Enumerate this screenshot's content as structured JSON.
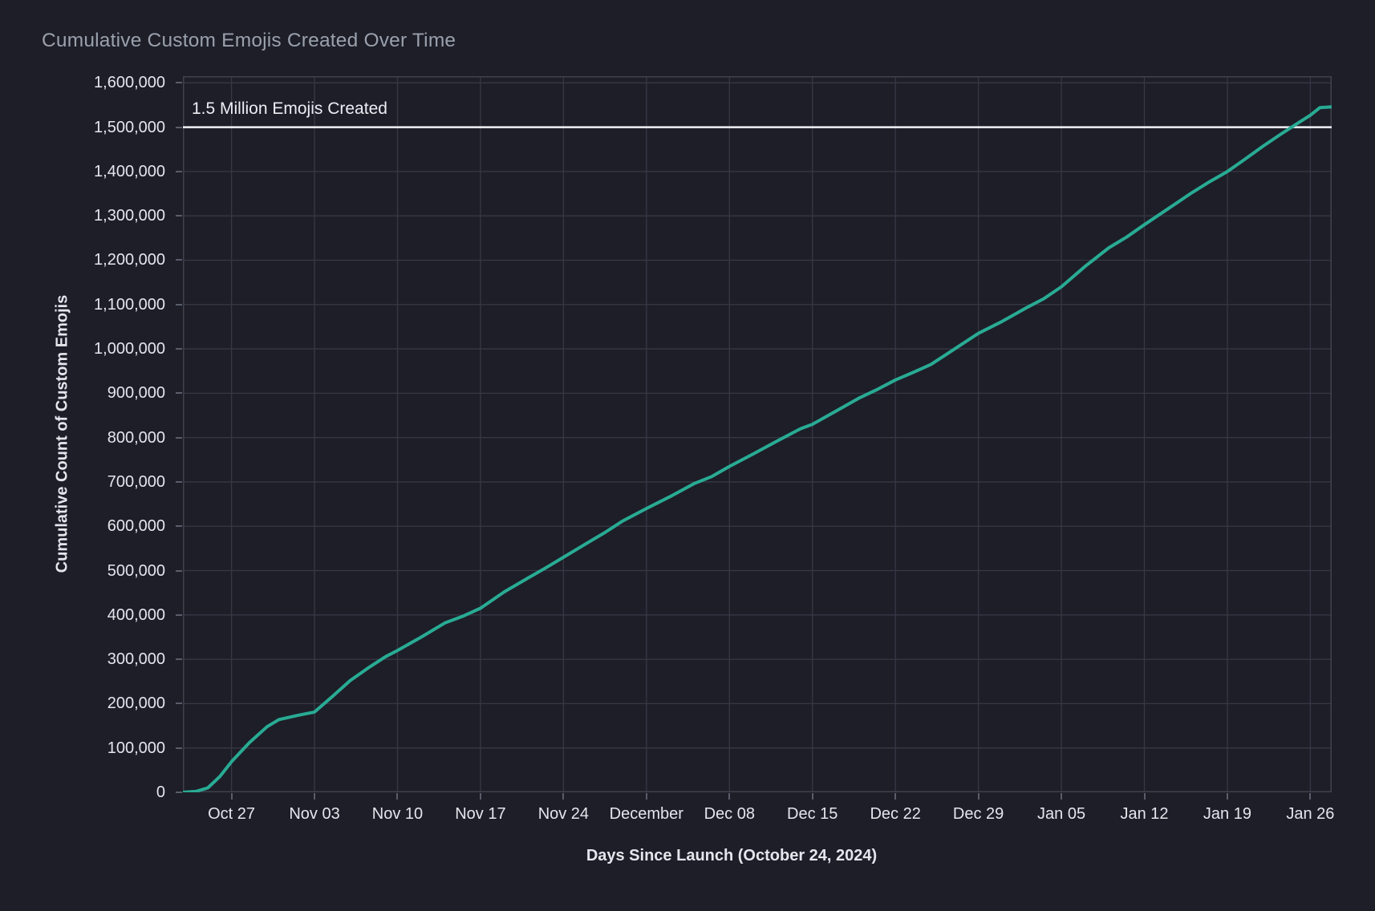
{
  "chart_data": {
    "type": "line",
    "title": "Cumulative Custom Emojis Created Over Time",
    "xlabel": "Days Since Launch (October 24, 2024)",
    "ylabel": "Cumulative Count of Custom Emojis",
    "grid": true,
    "legend": "none",
    "colors": {
      "background": "#1d1e28",
      "gridline": "#363845",
      "plot_border": "#3f414d",
      "tick_mark": "#5a5c6a",
      "tick_text": "#e5e6ec",
      "title_text": "#9aa1ad",
      "line": "#29ab94",
      "ref_line": "#f2f3f7"
    },
    "x_axis": {
      "note": "days since launch; day 0 = Oct 24, 2024",
      "range_days": [
        -1.1,
        95.8
      ],
      "tick_days": [
        3,
        10,
        17,
        24,
        31,
        38,
        45,
        52,
        59,
        66,
        73,
        80,
        87,
        94
      ],
      "tick_labels": [
        "Oct 27",
        "Nov 03",
        "Nov 10",
        "Nov 17",
        "Nov 24",
        "December",
        "Dec 08",
        "Dec 15",
        "Dec 22",
        "Dec 29",
        "Jan 05",
        "Jan 12",
        "Jan 19",
        "Jan 26"
      ]
    },
    "y_axis": {
      "range": [
        0,
        1615000
      ],
      "ticks": [
        {
          "value": 0,
          "label": "0"
        },
        {
          "value": 100000,
          "label": "100,000"
        },
        {
          "value": 200000,
          "label": "200,000"
        },
        {
          "value": 300000,
          "label": "300,000"
        },
        {
          "value": 400000,
          "label": "400,000"
        },
        {
          "value": 500000,
          "label": "500,000"
        },
        {
          "value": 600000,
          "label": "600,000"
        },
        {
          "value": 700000,
          "label": "700,000"
        },
        {
          "value": 800000,
          "label": "800,000"
        },
        {
          "value": 900000,
          "label": "900,000"
        },
        {
          "value": 1000000,
          "label": "1,000,000"
        },
        {
          "value": 1100000,
          "label": "1,100,000"
        },
        {
          "value": 1200000,
          "label": "1,200,000"
        },
        {
          "value": 1300000,
          "label": "1,300,000"
        },
        {
          "value": 1400000,
          "label": "1,400,000"
        },
        {
          "value": 1500000,
          "label": "1,500,000"
        },
        {
          "value": 1600000,
          "label": "1,600,000"
        }
      ]
    },
    "ref_line": {
      "value": 1500000,
      "label": "1.5 Million Emojis Created"
    },
    "series": [
      {
        "name": "cumulative-custom-emojis",
        "points": [
          [
            -1.1,
            0
          ],
          [
            0,
            2000
          ],
          [
            1,
            10000
          ],
          [
            2,
            35000
          ],
          [
            3,
            69000
          ],
          [
            4.5,
            112000
          ],
          [
            6,
            148000
          ],
          [
            7,
            164000
          ],
          [
            8.5,
            173000
          ],
          [
            10,
            181000
          ],
          [
            11.5,
            216000
          ],
          [
            13,
            252000
          ],
          [
            14.5,
            280000
          ],
          [
            16,
            306000
          ],
          [
            17,
            320000
          ],
          [
            19,
            350000
          ],
          [
            21,
            382000
          ],
          [
            22.5,
            397000
          ],
          [
            24,
            415000
          ],
          [
            26,
            452000
          ],
          [
            28,
            483000
          ],
          [
            29.5,
            506000
          ],
          [
            31,
            530000
          ],
          [
            33,
            562000
          ],
          [
            34.5,
            586000
          ],
          [
            36,
            612000
          ],
          [
            38,
            640000
          ],
          [
            40,
            667000
          ],
          [
            42,
            696000
          ],
          [
            43.5,
            712000
          ],
          [
            45,
            735000
          ],
          [
            47,
            763000
          ],
          [
            49,
            792000
          ],
          [
            51,
            820000
          ],
          [
            52,
            830000
          ],
          [
            54,
            860000
          ],
          [
            56,
            890000
          ],
          [
            57.5,
            909000
          ],
          [
            59,
            930000
          ],
          [
            60.5,
            947000
          ],
          [
            62,
            965000
          ],
          [
            64,
            1000000
          ],
          [
            66,
            1035000
          ],
          [
            68,
            1062000
          ],
          [
            70,
            1092000
          ],
          [
            71.5,
            1113000
          ],
          [
            73,
            1140000
          ],
          [
            75,
            1186000
          ],
          [
            77,
            1228000
          ],
          [
            78.5,
            1252000
          ],
          [
            80,
            1280000
          ],
          [
            82,
            1316000
          ],
          [
            84,
            1352000
          ],
          [
            85.5,
            1377000
          ],
          [
            87,
            1400000
          ],
          [
            88.5,
            1428000
          ],
          [
            90,
            1457000
          ],
          [
            91.5,
            1484000
          ],
          [
            93,
            1510000
          ],
          [
            94,
            1527000
          ],
          [
            94.8,
            1544000
          ],
          [
            95.8,
            1546000
          ]
        ]
      }
    ]
  }
}
